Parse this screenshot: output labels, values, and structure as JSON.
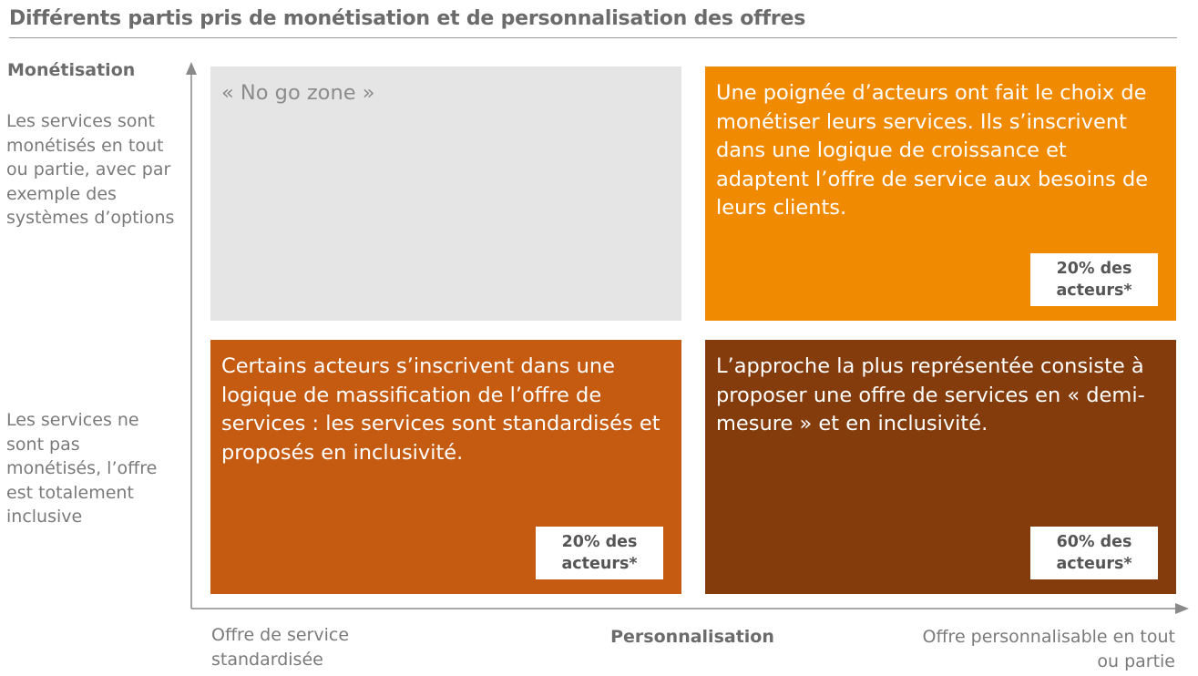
{
  "title": "Différents partis pris de monétisation et de personnalisation des offres",
  "y_axis": {
    "label": "Monétisation",
    "top_text": "Les services sont monétisés en tout ou partie, avec par exemple des systèmes d’options",
    "bottom_text": "Les services ne sont pas monétisés, l’offre est totalement inclusive"
  },
  "x_axis": {
    "label": "Personnalisation",
    "left_text": "Offre de service standardisée",
    "right_text": "Offre personnalisable en tout ou partie"
  },
  "quadrants": {
    "top_left": {
      "text": "« No go zone »",
      "color": "#e5e5e5"
    },
    "top_right": {
      "text": "Une poignée d’acteurs ont fait le choix de monétiser leurs services. Ils s’inscrivent dans une logique de croissance et adaptent l’offre de service aux besoins de leurs clients.",
      "badge_line1": "20% des",
      "badge_line2": "acteurs*",
      "color": "#f08a00"
    },
    "bottom_left": {
      "text": "Certains acteurs s’inscrivent dans une logique de massification de l’offre de services : les services sont standardisés et proposés en inclusivité.",
      "badge_line1": "20% des",
      "badge_line2": "acteurs*",
      "color": "#c55a11"
    },
    "bottom_right": {
      "text": "L’approche la plus représentée consiste à proposer une offre de services en « demi-mesure » et en inclusivité.",
      "badge_line1": "60% des",
      "badge_line2": "acteurs*",
      "color": "#843c0c"
    }
  }
}
